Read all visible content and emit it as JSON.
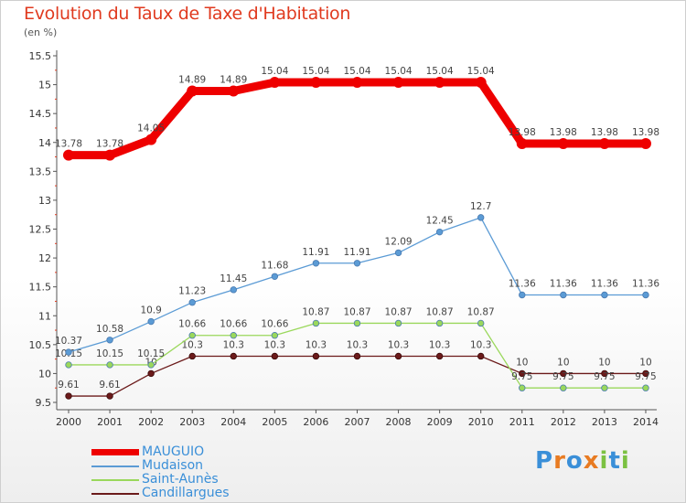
{
  "chart_data": {
    "type": "line",
    "title": "Evolution du Taux de Taxe d'Habitation",
    "unit_label": "(en %)",
    "x": [
      "2000",
      "2001",
      "2002",
      "2003",
      "2004",
      "2005",
      "2006",
      "2007",
      "2008",
      "2009",
      "2010",
      "2011",
      "2012",
      "2013",
      "2014"
    ],
    "y_ticks": [
      "9.5",
      "10",
      "10.5",
      "11",
      "11.5",
      "12",
      "12.5",
      "13",
      "13.5",
      "14",
      "14.5",
      "15",
      "15.5"
    ],
    "ylim": [
      9.5,
      15.5
    ],
    "grid": false,
    "legend_position": "bottom-left",
    "series": [
      {
        "name": "MAUGUIO",
        "color": "#ee0000",
        "values": [
          13.78,
          13.78,
          14.05,
          14.89,
          14.89,
          15.04,
          15.04,
          15.04,
          15.04,
          15.04,
          15.04,
          13.98,
          13.98,
          13.98,
          13.98
        ],
        "labels": [
          "13.78",
          "13.78",
          "14.05",
          "14.89",
          "14.89",
          "15.04",
          "15.04",
          "15.04",
          "15.04",
          "15.04",
          "15.04",
          "13.98",
          "13.98",
          "13.98",
          "13.98"
        ]
      },
      {
        "name": "Mudaison",
        "color": "#5b9bd5",
        "values": [
          10.37,
          10.58,
          10.9,
          11.23,
          11.45,
          11.68,
          11.91,
          11.91,
          12.09,
          12.45,
          12.7,
          11.36,
          11.36,
          11.36,
          11.36
        ],
        "labels": [
          "10.37",
          "10.58",
          "10.9",
          "11.23",
          "11.45",
          "11.68",
          "11.91",
          "11.91",
          "12.09",
          "12.45",
          "12.7",
          "11.36",
          "11.36",
          "11.36",
          "11.36"
        ]
      },
      {
        "name": "Saint-Aunès",
        "color": "#9ad85b",
        "values": [
          10.15,
          10.15,
          10.15,
          10.66,
          10.66,
          10.66,
          10.87,
          10.87,
          10.87,
          10.87,
          10.87,
          9.75,
          9.75,
          9.75,
          9.75
        ],
        "labels": [
          "10.15",
          "10.15",
          "10.15",
          "10.66",
          "10.66",
          "10.66",
          "10.87",
          "10.87",
          "10.87",
          "10.87",
          "10.87",
          "9.75",
          "9.75",
          "9.75",
          "9.75"
        ]
      },
      {
        "name": "Candillargues",
        "color": "#6b1a1a",
        "values": [
          9.61,
          9.61,
          10,
          10.3,
          10.3,
          10.3,
          10.3,
          10.3,
          10.3,
          10.3,
          10.3,
          10,
          10,
          10,
          10
        ],
        "labels": [
          "9.61",
          "9.61",
          "10",
          "10.3",
          "10.3",
          "10.3",
          "10.3",
          "10.3",
          "10.3",
          "10.3",
          "10.3",
          "10",
          "10",
          "10",
          "10"
        ]
      }
    ]
  },
  "brand": {
    "letters": [
      "P",
      "r",
      "o",
      "x",
      "i",
      "t",
      "i"
    ],
    "colors": [
      "#3a8fd8",
      "#e87b22",
      "#3a8fd8",
      "#e87b22",
      "#7bc142",
      "#3a8fd8",
      "#7bc142"
    ]
  }
}
